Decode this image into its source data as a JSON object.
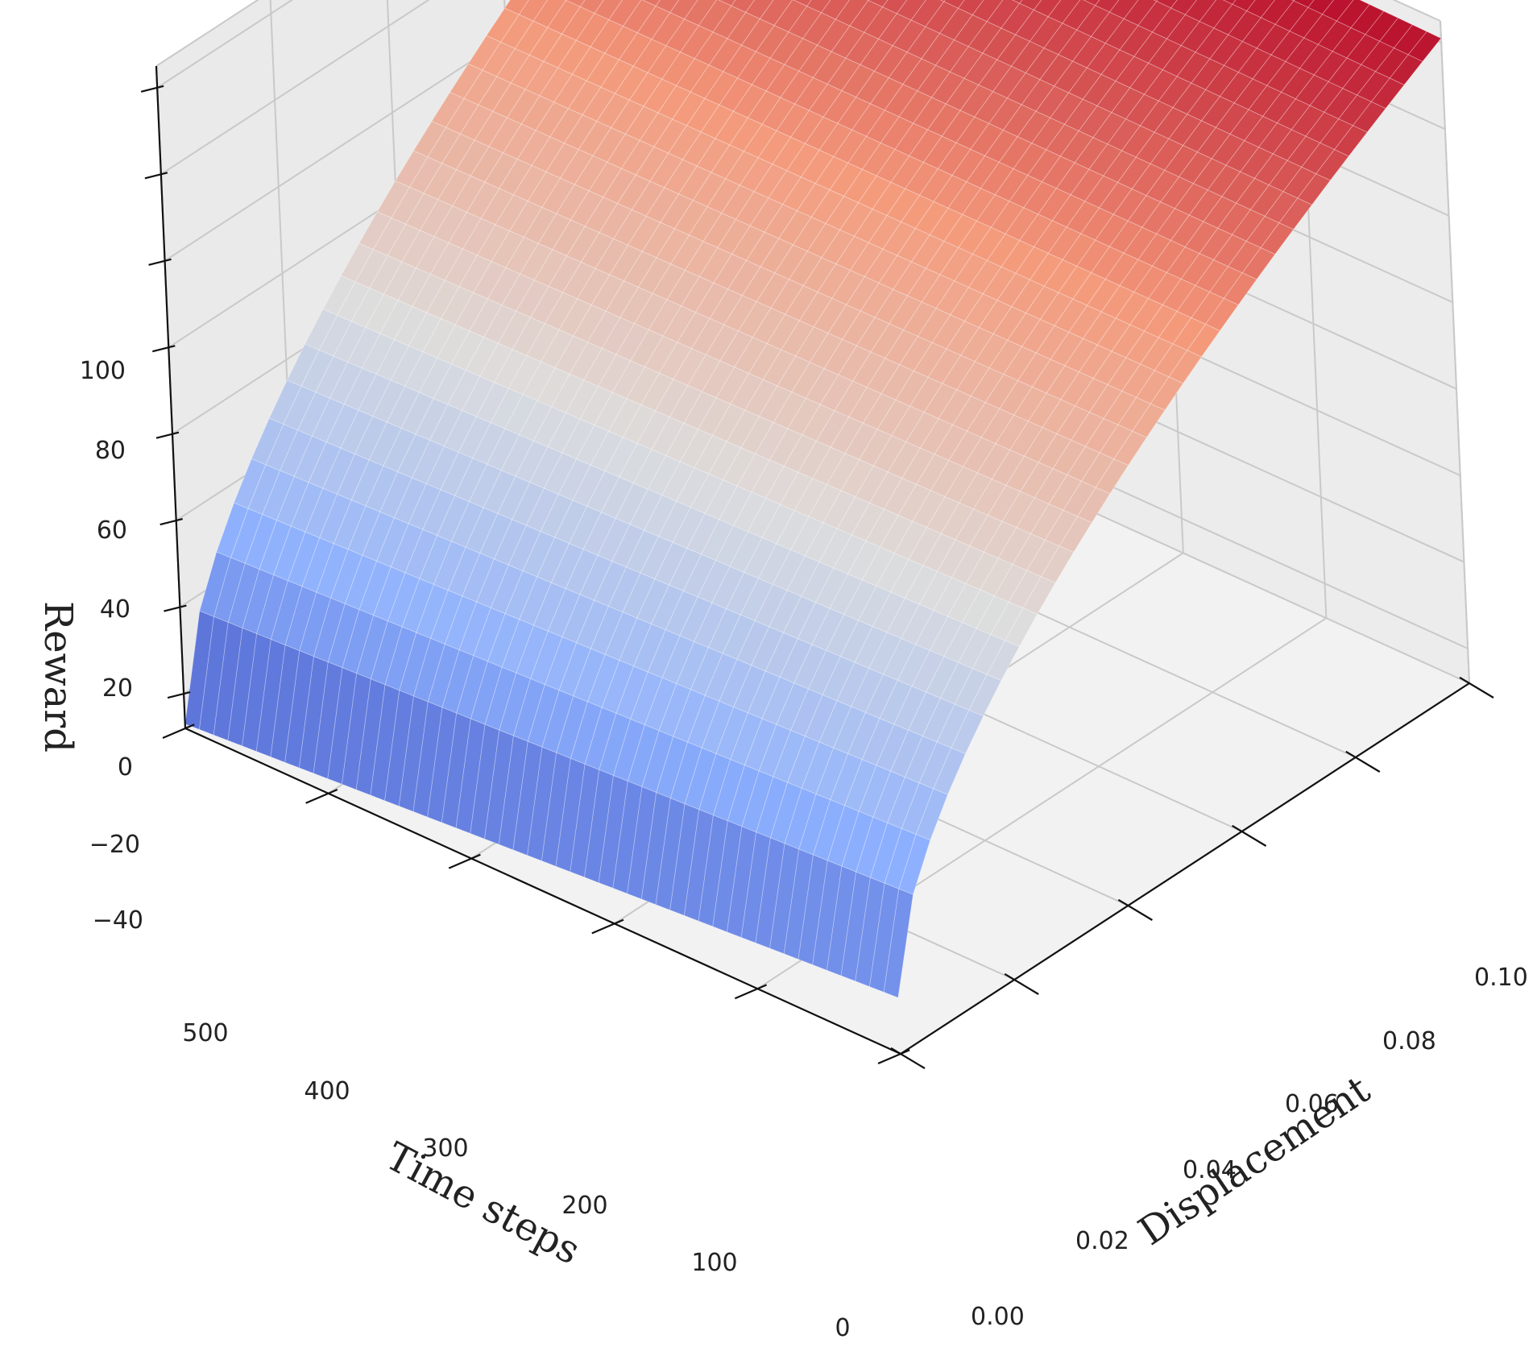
{
  "chart_data": {
    "type": "surface",
    "colormap": "coolwarm",
    "colors": {
      "pane_left": "#eaeaea",
      "pane_right": "#ececec",
      "pane_floor": "#f2f2f2",
      "grid": "#c9c9c9",
      "low": "#3b4cc0",
      "mid": "#dddddd",
      "high": "#b40426"
    },
    "xlabel": "Displacement",
    "ylabel": "Time steps",
    "zlabel": "Reward",
    "x_ticks": [
      "0.00",
      "0.02",
      "0.04",
      "0.06",
      "0.08",
      "0.10"
    ],
    "y_ticks": [
      "0",
      "100",
      "200",
      "300",
      "400",
      "500"
    ],
    "z_ticks": [
      "−40",
      "−20",
      "0",
      "20",
      "40",
      "60",
      "80",
      "100"
    ],
    "xlim": [
      0.0,
      0.1
    ],
    "ylim": [
      0,
      500
    ],
    "zlim": [
      -48,
      105
    ],
    "surface_corners": [
      {
        "x": 0.0,
        "y": 0,
        "z": -35
      },
      {
        "x": 0.0,
        "y": 500,
        "z": -47
      },
      {
        "x": 0.1,
        "y": 0,
        "z": 101
      },
      {
        "x": 0.1,
        "y": 500,
        "z": 104
      }
    ],
    "surface_shape": "concave in displacement, approximately linear in time steps"
  }
}
